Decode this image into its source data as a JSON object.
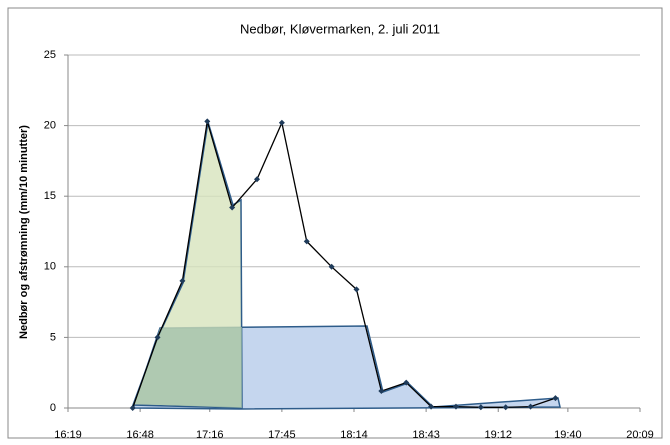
{
  "chart_data": {
    "type": "line",
    "title": "Nedbør, Kløvermarken, 2. juli 2011",
    "y_label": "Nedbør og afstrømning (mm/10 minutter)",
    "x": [
      1005,
      1015,
      1025,
      1035,
      1045,
      1055,
      1065,
      1075,
      1085,
      1095,
      1105,
      1115,
      1125,
      1135,
      1145,
      1155,
      1165,
      1175
    ],
    "series": [
      {
        "color": "#000000",
        "values": [
          0,
          5,
          9,
          20.3,
          14.2,
          16.2,
          20.2,
          11.8,
          10,
          8.4,
          1.2,
          1.8,
          0.1,
          0.1,
          0.05,
          0.05,
          0.1,
          0.7
        ]
      }
    ],
    "xlim": [
      979,
      1209
    ],
    "xticks": [
      {
        "value": 979,
        "label": "16:19"
      },
      {
        "value": 1008,
        "label": "16:48"
      },
      {
        "value": 1036,
        "label": "17:16"
      },
      {
        "value": 1065,
        "label": "17:45"
      },
      {
        "value": 1094,
        "label": "18:14"
      },
      {
        "value": 1123,
        "label": "18:43"
      },
      {
        "value": 1152,
        "label": "19:12"
      },
      {
        "value": 1180,
        "label": "19:40"
      },
      {
        "value": 1209,
        "label": "20:09"
      }
    ],
    "ylim": [
      0,
      25
    ],
    "yticks": [
      0,
      5,
      10,
      15,
      20,
      25
    ],
    "grid": true
  }
}
